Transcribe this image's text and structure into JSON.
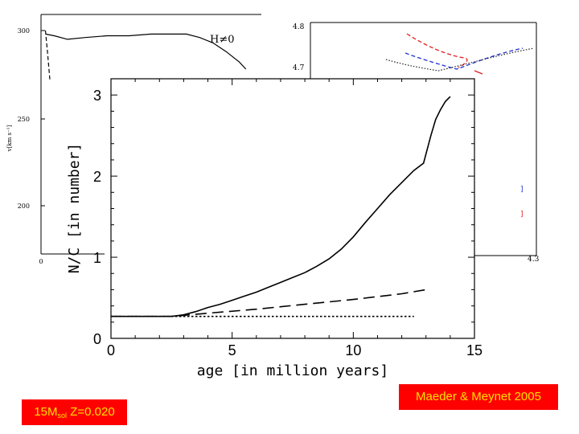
{
  "chart_data": [
    {
      "type": "line",
      "role": "background-left",
      "yticks": [
        "300",
        "250",
        "200"
      ],
      "xticks": [
        "0"
      ],
      "ylabel": "v[km s⁻¹]",
      "annotation": "H≠0",
      "series": [
        {
          "style": "solid",
          "x": [
            0.02,
            0.06,
            0.12,
            0.2,
            0.3,
            0.4,
            0.5,
            0.58,
            0.66,
            0.72,
            0.78,
            0.84,
            0.9,
            0.93
          ],
          "y": [
            298,
            297,
            295,
            296,
            297,
            297,
            298,
            298,
            298,
            296,
            293,
            288,
            282,
            278
          ]
        },
        {
          "style": "dashed",
          "x": [
            0.02,
            0.03,
            0.04
          ],
          "y": [
            300,
            287,
            272
          ]
        }
      ]
    },
    {
      "type": "line",
      "role": "background-right",
      "yticks": [
        "4.8",
        "4.7",
        "4.3"
      ],
      "series": [
        {
          "style": "dashed",
          "color": "#e02020"
        },
        {
          "style": "dashed",
          "color": "#2030d0"
        },
        {
          "style": "dotted",
          "color": "#222222"
        }
      ]
    },
    {
      "type": "line",
      "role": "main",
      "xlabel": "age [in million years]",
      "ylabel": "N/C [in number]",
      "xlim": [
        0,
        15
      ],
      "ylim": [
        0,
        3.2
      ],
      "xticks": [
        0,
        5,
        10,
        15
      ],
      "yticks": [
        0,
        1,
        2,
        3
      ],
      "grid": false,
      "series": [
        {
          "style": "solid",
          "x": [
            0,
            2.5,
            3,
            3.5,
            4,
            4.5,
            5,
            5.5,
            6,
            6.5,
            7,
            7.5,
            8,
            8.5,
            9,
            9.5,
            10,
            10.5,
            11,
            11.5,
            12,
            12.5,
            12.9,
            13.2,
            13.4,
            13.6,
            13.8,
            14
          ],
          "y": [
            0.27,
            0.27,
            0.29,
            0.33,
            0.38,
            0.42,
            0.47,
            0.52,
            0.57,
            0.63,
            0.69,
            0.75,
            0.81,
            0.89,
            0.98,
            1.1,
            1.25,
            1.43,
            1.6,
            1.77,
            1.92,
            2.07,
            2.16,
            2.5,
            2.7,
            2.82,
            2.92,
            2.98
          ]
        },
        {
          "style": "dashed",
          "x": [
            0,
            2.5,
            4,
            6,
            8,
            10,
            12,
            13
          ],
          "y": [
            0.27,
            0.27,
            0.31,
            0.36,
            0.42,
            0.48,
            0.55,
            0.6
          ]
        },
        {
          "style": "dotted",
          "x": [
            0,
            12.5
          ],
          "y": [
            0.27,
            0.27
          ]
        }
      ]
    }
  ],
  "captions": {
    "mass": {
      "prefix": "15M",
      "sub": "sol",
      "suffix": " Z=0.020"
    },
    "citation": "Maeder & Meynet 2005"
  },
  "colors": {
    "caption_bg": "#ff0000",
    "caption_text": "#ffe000",
    "curve_red": "#e02020",
    "curve_blue": "#2030d0"
  }
}
